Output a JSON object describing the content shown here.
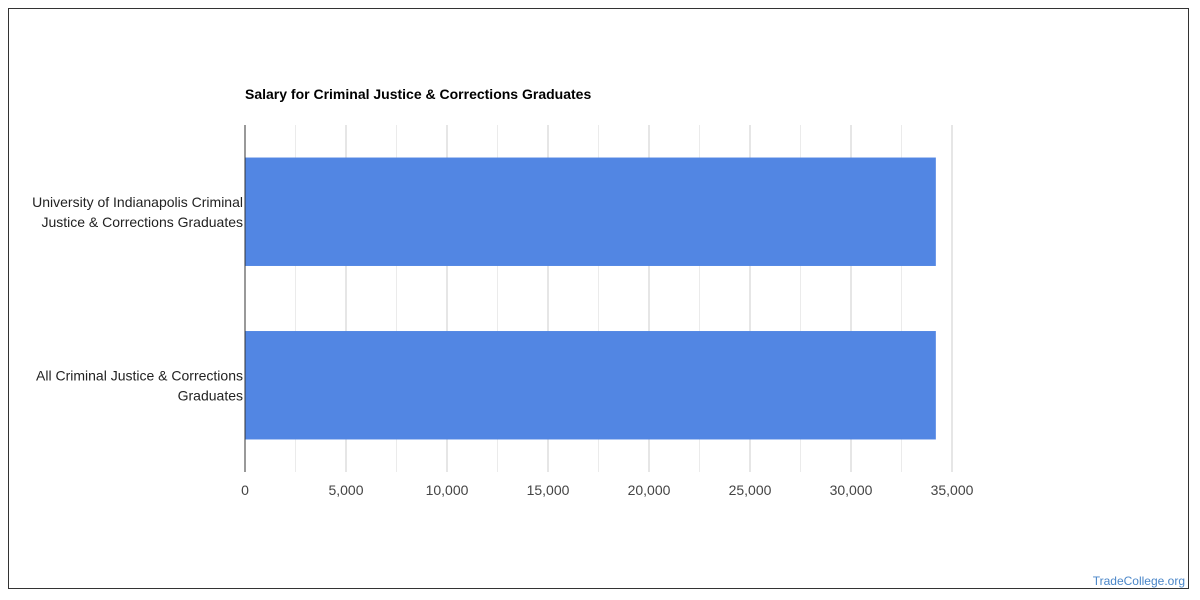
{
  "chart_data": {
    "type": "bar",
    "orientation": "horizontal",
    "title": "Salary for Criminal Justice & Corrections Graduates",
    "xlabel": "",
    "ylabel": "",
    "categories": [
      [
        "University of Indianapolis Criminal",
        "Justice & Corrections Graduates"
      ],
      [
        "All Criminal Justice & Corrections",
        "Graduates"
      ]
    ],
    "values": [
      34200,
      34200
    ],
    "xlim": [
      0,
      35000
    ],
    "xticks": [
      0,
      5000,
      10000,
      15000,
      20000,
      25000,
      30000,
      35000
    ],
    "xtick_labels": [
      "0",
      "5,000",
      "10,000",
      "15,000",
      "20,000",
      "25,000",
      "30,000",
      "35,000"
    ],
    "grid": true,
    "legend": "none",
    "bar_color": "#5286e3"
  },
  "footer": {
    "watermark": "TradeCollege.org"
  }
}
